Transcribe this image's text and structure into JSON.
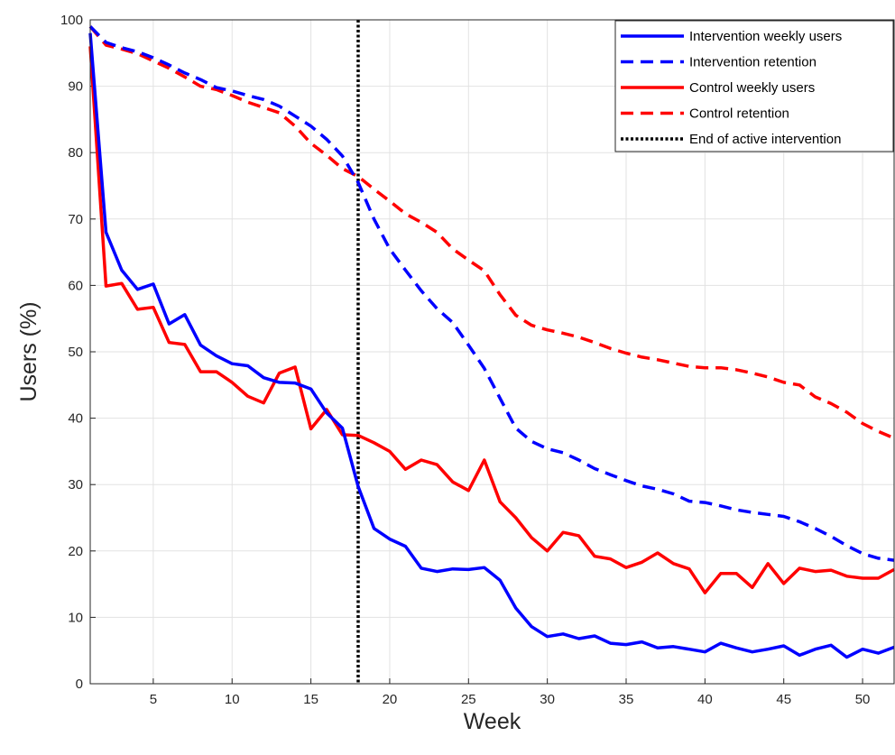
{
  "chart_data": {
    "type": "line",
    "title": "",
    "xlabel": "Week",
    "ylabel": "Users (%)",
    "xlim": [
      1,
      52
    ],
    "ylim": [
      0,
      100
    ],
    "x_ticks": [
      5,
      10,
      15,
      20,
      25,
      30,
      35,
      40,
      45,
      50
    ],
    "y_ticks": [
      0,
      10,
      20,
      30,
      40,
      50,
      60,
      70,
      80,
      90,
      100
    ],
    "grid": true,
    "legend_position": "top-right",
    "x": [
      1,
      2,
      3,
      4,
      5,
      6,
      7,
      8,
      9,
      10,
      11,
      12,
      13,
      14,
      15,
      16,
      17,
      18,
      19,
      20,
      21,
      22,
      23,
      24,
      25,
      26,
      27,
      28,
      29,
      30,
      31,
      32,
      33,
      34,
      35,
      36,
      37,
      38,
      39,
      40,
      41,
      42,
      43,
      44,
      45,
      46,
      47,
      48,
      49,
      50,
      51,
      52
    ],
    "series": [
      {
        "name": "Intervention weekly users",
        "color": "#0000ff",
        "dash": "solid",
        "values": [
          98,
          68,
          62.3,
          59.4,
          60.2,
          54.2,
          55.6,
          51,
          49.4,
          48.2,
          47.9,
          46.1,
          45.4,
          45.3,
          44.4,
          40.8,
          38.5,
          29.7,
          23.4,
          21.8,
          20.7,
          17.4,
          16.9,
          17.3,
          17.2,
          17.5,
          15.6,
          11.4,
          8.6,
          7.1,
          7.5,
          6.8,
          7.2,
          6.1,
          5.9,
          6.3,
          5.4,
          5.6,
          5.2,
          4.8,
          6.1,
          5.4,
          4.8,
          5.2,
          5.7,
          4.3,
          5.2,
          5.8,
          4.0,
          5.2,
          4.6,
          5.5
        ]
      },
      {
        "name": "Intervention retention",
        "color": "#0000ff",
        "dash": "dashed",
        "values": [
          99,
          96.6,
          95.8,
          95.2,
          94.3,
          93.2,
          92.0,
          91.0,
          89.8,
          89.3,
          88.6,
          88.0,
          87.0,
          85.5,
          84.0,
          82.0,
          79.5,
          75.5,
          70.0,
          65.5,
          62.3,
          59.2,
          56.5,
          54.4,
          51.0,
          47.5,
          43.0,
          38.5,
          36.5,
          35.4,
          34.8,
          33.7,
          32.4,
          31.5,
          30.6,
          29.8,
          29.3,
          28.6,
          27.5,
          27.3,
          26.8,
          26.2,
          25.8,
          25.5,
          25.2,
          24.4,
          23.4,
          22.2,
          20.8,
          19.6,
          18.9,
          18.6
        ]
      },
      {
        "name": "Control weekly users",
        "color": "#ff0000",
        "dash": "solid",
        "values": [
          96,
          59.9,
          60.3,
          56.4,
          56.7,
          51.4,
          51.1,
          47.0,
          47.0,
          45.4,
          43.3,
          42.3,
          46.8,
          47.7,
          38.4,
          41.3,
          37.5,
          37.4,
          36.3,
          35.0,
          32.3,
          33.7,
          33.0,
          30.4,
          29.1,
          33.7,
          27.4,
          25.0,
          22.0,
          20.0,
          22.8,
          22.3,
          19.2,
          18.8,
          17.5,
          18.3,
          19.7,
          18.1,
          17.3,
          13.7,
          16.6,
          16.6,
          14.5,
          18.1,
          15.1,
          17.4,
          16.9,
          17.1,
          16.2,
          15.9,
          15.9,
          17.2
        ]
      },
      {
        "name": "Control retention",
        "color": "#ff0000",
        "dash": "dashed",
        "values": [
          99,
          96.2,
          95.6,
          94.9,
          93.8,
          92.7,
          91.4,
          90.0,
          89.5,
          88.6,
          87.6,
          86.8,
          86.0,
          84.0,
          81.4,
          79.6,
          77.6,
          76.4,
          74.5,
          72.7,
          70.8,
          69.5,
          68.0,
          65.5,
          63.8,
          62.2,
          58.6,
          55.5,
          54.0,
          53.3,
          52.8,
          52.2,
          51.4,
          50.5,
          49.8,
          49.2,
          48.8,
          48.3,
          47.8,
          47.6,
          47.6,
          47.3,
          46.8,
          46.2,
          45.4,
          45.0,
          43.2,
          42.2,
          40.9,
          39.2,
          38.0,
          37.0
        ]
      },
      {
        "name": "End of active intervention",
        "color": "#000000",
        "dash": "dotted",
        "x_value": 18
      }
    ]
  }
}
